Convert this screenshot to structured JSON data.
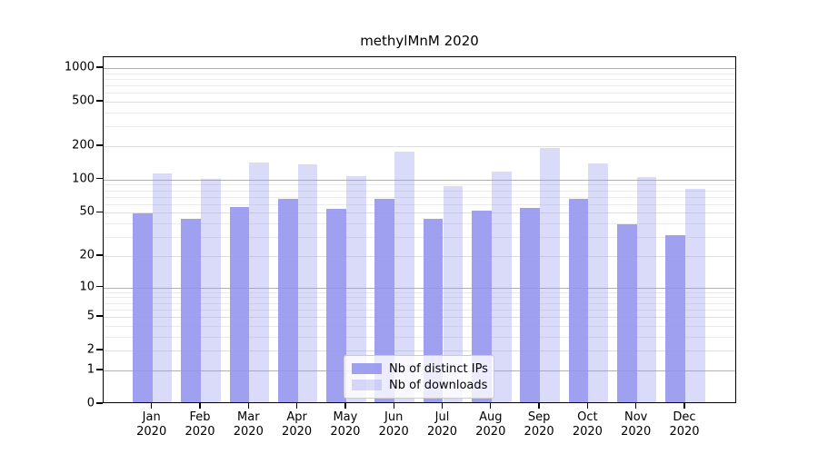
{
  "title": "methylMnM 2020",
  "legend": {
    "entries": [
      {
        "label": "Nb of distinct IPs"
      },
      {
        "label": "Nb of downloads"
      }
    ]
  },
  "chart_data": {
    "type": "bar",
    "title": "methylMnM 2020",
    "months": [
      "Jan",
      "Feb",
      "Mar",
      "Apr",
      "May",
      "Jun",
      "Jul",
      "Aug",
      "Sep",
      "Oct",
      "Nov",
      "Dec"
    ],
    "year": "2020",
    "series": [
      {
        "name": "Nb of distinct IPs",
        "color": "rgba(150,150,238,0.9)",
        "values": [
          49,
          44,
          56,
          67,
          54,
          67,
          44,
          52,
          55,
          67,
          39,
          31
        ]
      },
      {
        "name": "Nb of downloads",
        "color": "rgba(150,150,238,0.35)",
        "values": [
          113,
          101,
          142,
          136,
          107,
          178,
          88,
          117,
          192,
          139,
          106,
          83
        ]
      }
    ],
    "yscale": "log10(1+v)",
    "ytick_values": [
      0,
      1,
      2,
      5,
      10,
      20,
      50,
      100,
      200,
      500,
      1000
    ],
    "ytick_labels": [
      "0",
      "1",
      "2",
      "5",
      "10",
      "20",
      "50",
      "100",
      "200",
      "500",
      "1000"
    ],
    "minor_grid_values": [
      3,
      4,
      6,
      7,
      8,
      9,
      30,
      40,
      60,
      70,
      80,
      90,
      300,
      400,
      600,
      700,
      800,
      900
    ],
    "decade_values": [
      1,
      10,
      100,
      1000
    ],
    "ylim": [
      0,
      1250
    ],
    "grid": true,
    "grid_color_decade": "#b0b0b0",
    "grid_color_major": "#dedede",
    "grid_color_minor": "#ebebeb",
    "legend_position": "lower-center"
  }
}
